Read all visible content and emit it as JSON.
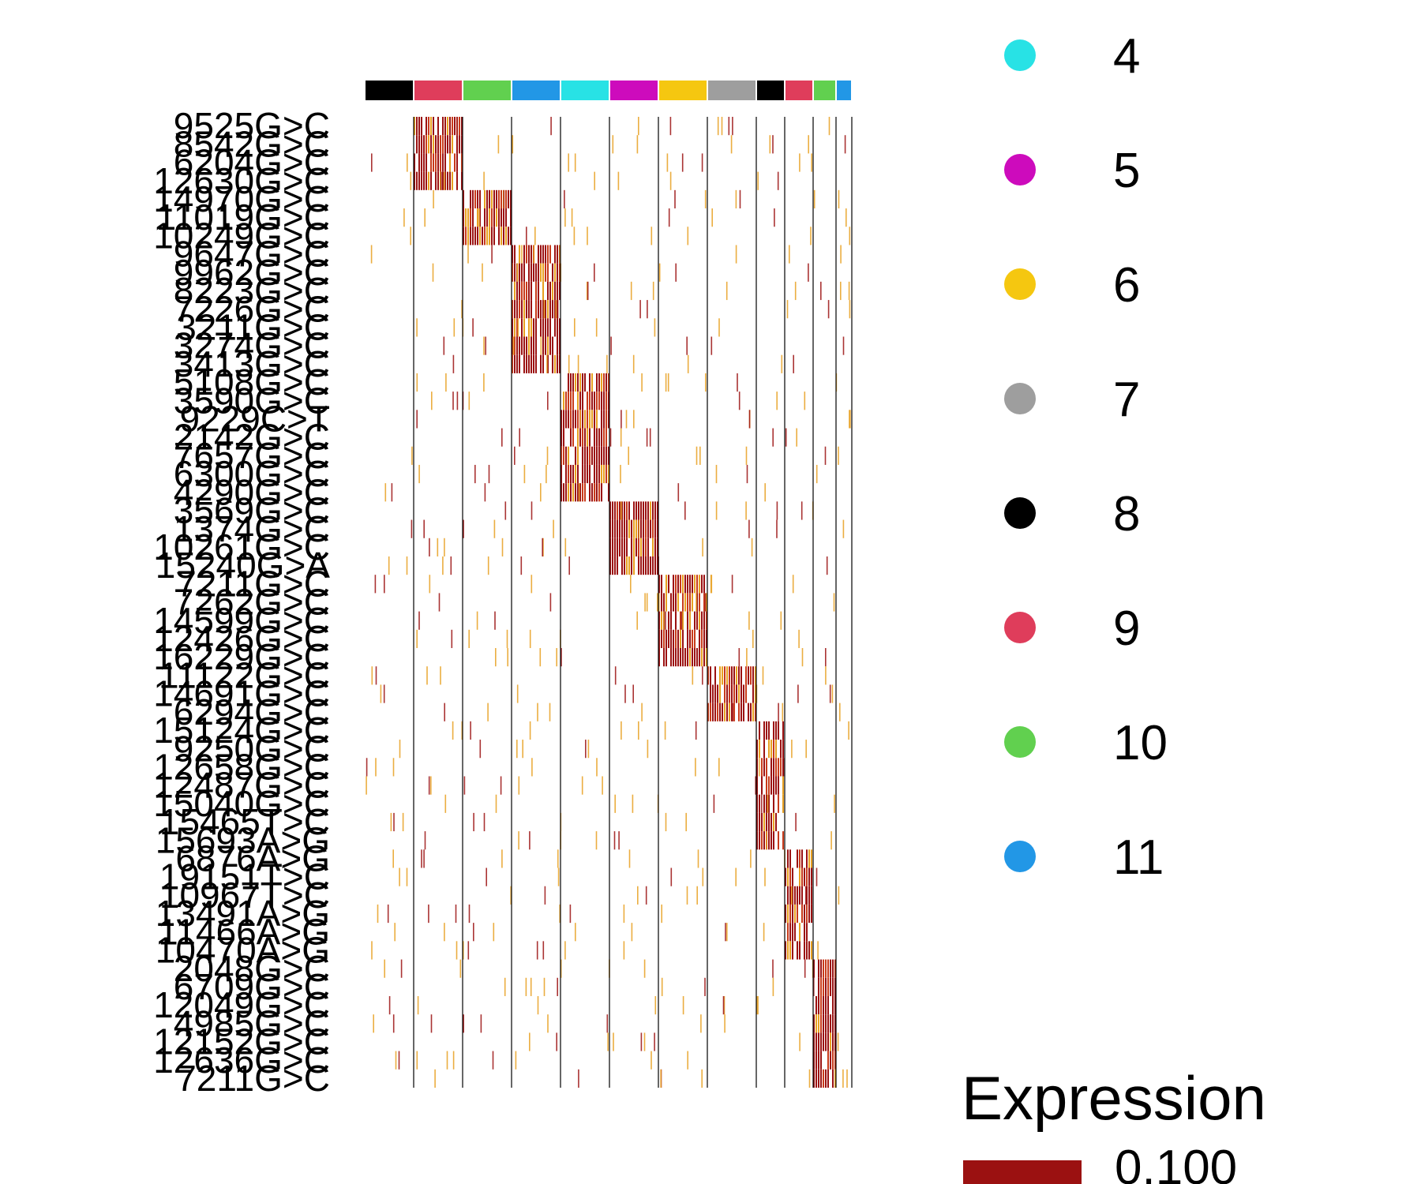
{
  "chart_data": {
    "type": "heatmap",
    "title": "",
    "xlabel": "",
    "ylabel": "",
    "column_annotation": [
      {
        "cluster": "8",
        "color": "#000000"
      },
      {
        "cluster": "9",
        "color": "#DF3D5B"
      },
      {
        "cluster": "10",
        "color": "#61D04F"
      },
      {
        "cluster": "11",
        "color": "#2297E6"
      },
      {
        "cluster": "4",
        "color": "#28E2E5"
      },
      {
        "cluster": "5",
        "color": "#CD0BBC"
      },
      {
        "cluster": "6",
        "color": "#F5C710"
      },
      {
        "cluster": "7",
        "color": "#9E9E9E"
      },
      {
        "cluster": "8",
        "color": "#000000"
      },
      {
        "cluster": "9",
        "color": "#DF3D5B"
      },
      {
        "cluster": "10",
        "color": "#61D04F"
      },
      {
        "cluster": "11",
        "color": "#2297E6"
      }
    ],
    "row_labels": [
      "9525G>C",
      "8542G>C",
      "6204G>C",
      "12630G>C",
      "14970G>C",
      "11019G>C",
      "10249G>C",
      "9647G>C",
      "9962G>C",
      "8223G>C",
      "7226G>C",
      "3211G>C",
      "3274G>C",
      "3413G>C",
      "5108G>C",
      "3590G>C",
      "9229C>T",
      "2142G>C",
      "7657G>C",
      "6300G>C",
      "4290G>C",
      "3569G>C",
      "1374G>C",
      "10261G>C",
      "15240G>A",
      "7211G>C",
      "7262G>C",
      "14599G>C",
      "12426G>C",
      "16229G>C",
      "11122G>C",
      "14691G>C",
      "6294G>C",
      "15124G>C",
      "9250G>C",
      "12658G>C",
      "12487G>C",
      "15040G>C",
      "15465T>C",
      "15693A>G",
      "6876A>G",
      "19151T>C",
      "10967T>C",
      "13491A>G",
      "11466A>G",
      "10470A>G",
      "2048G>C",
      "6709G>C",
      "12049G>C",
      "4985G>C",
      "12152G>C",
      "12636G>C",
      "7211G>C"
    ],
    "row_groups": [
      {
        "cluster": "9",
        "rows": 4
      },
      {
        "cluster": "10",
        "rows": 3
      },
      {
        "cluster": "11",
        "rows": 7
      },
      {
        "cluster": "4",
        "rows": 7
      },
      {
        "cluster": "5",
        "rows": 4
      },
      {
        "cluster": "6",
        "rows": 5
      },
      {
        "cluster": "7",
        "rows": 3
      },
      {
        "cluster": "8",
        "rows": 7
      },
      {
        "cluster": "9",
        "rows": 6
      },
      {
        "cluster": "10",
        "rows": 7
      },
      {
        "cluster": "11",
        "rows": 0
      }
    ],
    "colors": {
      "high": "#9B1111",
      "mid": "#E8A020",
      "low": "#FFFFFF"
    },
    "grid": false
  },
  "legend": {
    "clusters": [
      {
        "label": "4",
        "color": "#28E2E5"
      },
      {
        "label": "5",
        "color": "#CD0BBC"
      },
      {
        "label": "6",
        "color": "#F5C710"
      },
      {
        "label": "7",
        "color": "#9E9E9E"
      },
      {
        "label": "8",
        "color": "#000000"
      },
      {
        "label": "9",
        "color": "#DF3D5B"
      },
      {
        "label": "10",
        "color": "#61D04F"
      },
      {
        "label": "11",
        "color": "#2297E6"
      }
    ],
    "expression_title": "Expression",
    "expression_value": "0.100"
  }
}
